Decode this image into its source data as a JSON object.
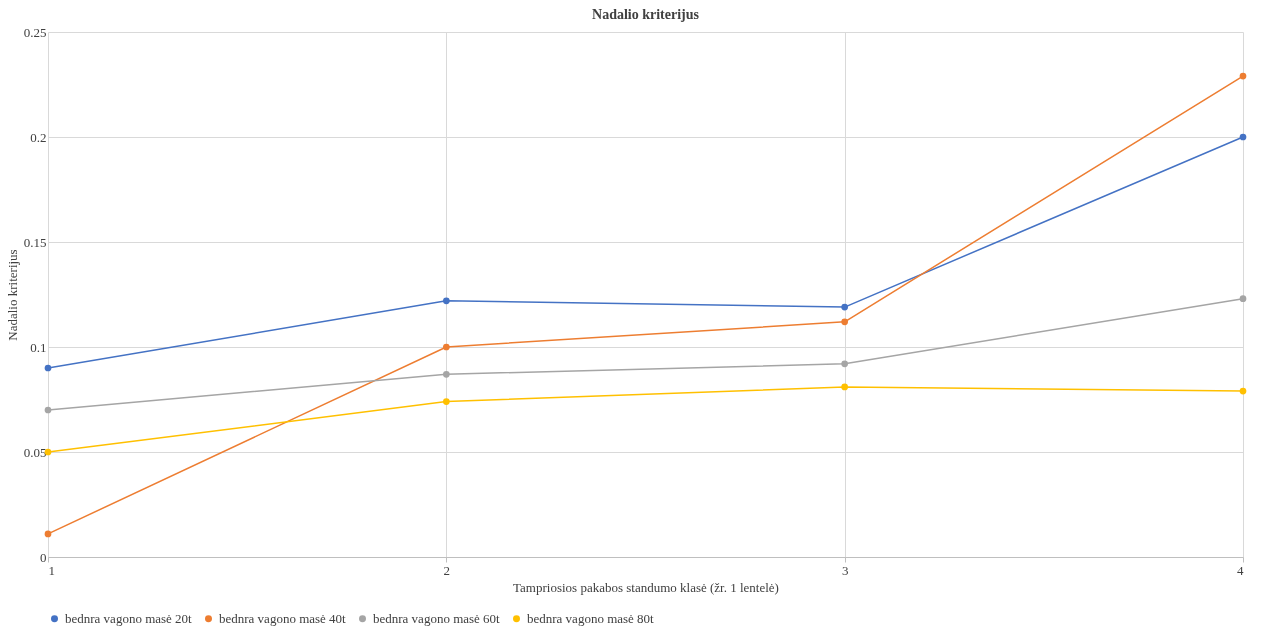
{
  "chart_data": {
    "type": "line",
    "title": "Nadalio kriterijus",
    "xlabel": "Tampriosios pakabos standumo klasė (žr. 1 lentelė)",
    "ylabel": "Nadalio kriterijus",
    "x": [
      1,
      2,
      3,
      4
    ],
    "series": [
      {
        "name": "bednra vagono masė 20t",
        "color": "#4472c4",
        "values": [
          0.09,
          0.122,
          0.119,
          0.2
        ]
      },
      {
        "name": "bednra vagono masė 40t",
        "color": "#ed7d31",
        "values": [
          0.011,
          0.1,
          0.112,
          0.229
        ]
      },
      {
        "name": "bednra vagono masė 60t",
        "color": "#a5a5a5",
        "values": [
          0.07,
          0.087,
          0.092,
          0.123
        ]
      },
      {
        "name": "bednra vagono masė 80t",
        "color": "#ffc000",
        "values": [
          0.05,
          0.074,
          0.081,
          0.079
        ]
      }
    ],
    "xlim": [
      1,
      4
    ],
    "xticks": [
      1,
      2,
      3,
      4
    ],
    "ylim": [
      0,
      0.25
    ],
    "yticks": [
      0,
      0.05,
      0.1,
      0.15,
      0.2,
      0.25
    ],
    "grid": true,
    "legend": "bottom",
    "marker": "circle",
    "line_style": "solid"
  }
}
